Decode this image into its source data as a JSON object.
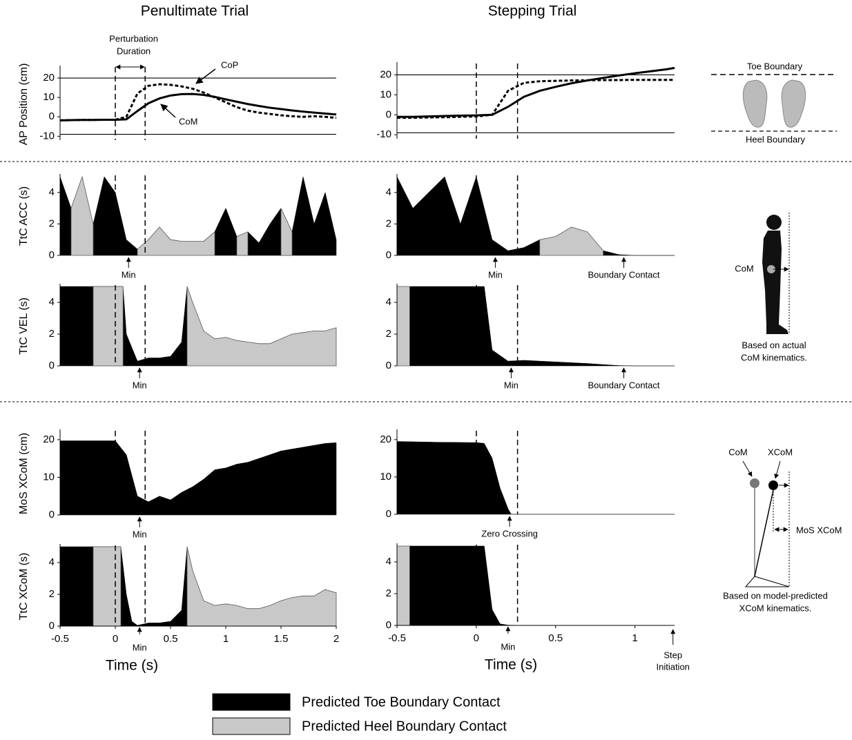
{
  "chart_data": [
    {
      "type": "line",
      "title": "Penultimate Trial",
      "ylabel": "AP Position (cm)",
      "perturbation_label": [
        "Perturbation",
        "Duration"
      ],
      "x": [
        -0.5,
        -0.4,
        -0.3,
        -0.2,
        -0.1,
        0,
        0.1,
        0.2,
        0.3,
        0.4,
        0.5,
        0.6,
        0.7,
        0.8,
        0.9,
        1,
        1.1,
        1.2,
        1.3,
        1.4,
        1.5,
        1.6,
        1.7,
        1.8,
        1.9,
        2
      ],
      "series": [
        {
          "name": "CoP",
          "color": "#000000",
          "dash": true,
          "values": [
            -1.8,
            -1.7,
            -1.6,
            -1.6,
            -1.5,
            -1.5,
            0,
            12,
            16,
            16.8,
            16.5,
            15.7,
            14.5,
            12.5,
            10,
            7.5,
            5,
            3.2,
            2.2,
            1.5,
            0.8,
            0.3,
            0,
            0.3,
            0,
            -0.5
          ]
        },
        {
          "name": "CoM",
          "color": "#000000",
          "dash": false,
          "values": [
            -1.8,
            -1.7,
            -1.6,
            -1.6,
            -1.5,
            -1.5,
            -1.3,
            3,
            7,
            9.5,
            11,
            11.7,
            11.8,
            11.3,
            10.3,
            9,
            7.8,
            6.6,
            5.6,
            4.7,
            4,
            3.3,
            2.7,
            2.2,
            1.7,
            1.2
          ]
        }
      ],
      "xlim": [
        -0.5,
        2
      ],
      "ylim": [
        -12,
        25
      ],
      "yticks": [
        -10,
        0,
        10,
        20
      ],
      "hlines": [
        20,
        -9
      ],
      "vlines": [
        0,
        0.27
      ]
    },
    {
      "type": "line",
      "title": "Stepping Trial",
      "x": [
        -0.5,
        -0.4,
        -0.3,
        -0.2,
        -0.1,
        0,
        0.1,
        0.2,
        0.3,
        0.4,
        0.5,
        0.6,
        0.7,
        0.8,
        0.9,
        1,
        1.1,
        1.2,
        1.25
      ],
      "series": [
        {
          "color": "#000000",
          "dash": true,
          "values": [
            -1.5,
            -1.5,
            -1.3,
            -1.2,
            -1,
            -0.8,
            0,
            12,
            16,
            16.8,
            17,
            17.2,
            17.3,
            17.4,
            17.4,
            17.5,
            17.5,
            17.5,
            17.5
          ]
        },
        {
          "color": "#000000",
          "dash": false,
          "values": [
            -1,
            -1,
            -0.8,
            -0.6,
            -0.4,
            -0.3,
            0,
            4,
            9,
            12,
            14,
            15.8,
            17.2,
            18.5,
            19.7,
            20.8,
            21.8,
            22.8,
            23.5
          ]
        }
      ],
      "xlim": [
        -0.5,
        1.25
      ],
      "ylim": [
        -12,
        25
      ],
      "yticks": [
        -10,
        0,
        10,
        20
      ],
      "hlines": [
        20,
        -9
      ],
      "vlines": [
        0,
        0.26
      ]
    },
    {
      "type": "area",
      "ylabel": "TtC ACC (s)",
      "x": [
        -0.5,
        -0.4,
        -0.3,
        -0.2,
        -0.1,
        0,
        0.1,
        0.2,
        0.3,
        0.4,
        0.5,
        0.6,
        0.7,
        0.8,
        0.9,
        1,
        1.1,
        1.2,
        1.3,
        1.4,
        1.5,
        1.6,
        1.7,
        1.8,
        1.9,
        2
      ],
      "series": [
        {
          "name": "Predicted Toe Boundary Contact",
          "color": "#000000",
          "values": [
            5,
            3,
            null,
            2,
            5,
            4,
            1,
            0.4,
            null,
            null,
            null,
            null,
            null,
            null,
            1.5,
            3,
            1.2,
            1.5,
            0.8,
            2,
            3,
            1.5,
            5,
            2,
            4,
            1
          ]
        },
        {
          "name": "Predicted Heel Boundary Contact",
          "color": "#c8c8c8",
          "values": [
            null,
            3,
            5,
            2,
            null,
            null,
            null,
            0.4,
            1,
            1.8,
            1,
            0.9,
            0.9,
            0.9,
            1.5,
            null,
            1.2,
            1.5,
            null,
            null,
            3,
            1.5,
            null,
            null,
            null,
            null
          ]
        }
      ],
      "xlim": [
        -0.5,
        2
      ],
      "ylim": [
        0,
        5
      ],
      "yticks": [
        0,
        2,
        4
      ],
      "vlines": [
        0,
        0.27
      ],
      "annotations": [
        {
          "text": "Min",
          "x": 0.12
        }
      ]
    },
    {
      "type": "area",
      "x": [
        -0.5,
        -0.4,
        -0.3,
        -0.2,
        -0.1,
        0,
        0.1,
        0.2,
        0.3,
        0.4,
        0.5,
        0.6,
        0.7,
        0.8,
        0.9,
        1,
        1.1,
        1.2,
        1.25
      ],
      "series": [
        {
          "name": "Predicted Toe Boundary Contact",
          "color": "#000000",
          "values": [
            5,
            3,
            4,
            5,
            2,
            5,
            1,
            0.3,
            0.5,
            1,
            null,
            null,
            null,
            0.3,
            0.05,
            0,
            0,
            0,
            0
          ]
        },
        {
          "name": "Predicted Heel Boundary Contact",
          "color": "#c8c8c8",
          "values": [
            null,
            null,
            null,
            null,
            null,
            null,
            null,
            null,
            null,
            1,
            1.2,
            1.8,
            1.5,
            0.3,
            null,
            null,
            null,
            null,
            null
          ]
        }
      ],
      "xlim": [
        -0.5,
        1.25
      ],
      "ylim": [
        0,
        5
      ],
      "yticks": [
        0,
        2,
        4
      ],
      "vlines": [
        0,
        0.26
      ],
      "annotations": [
        {
          "text": "Min",
          "x": 0.12
        },
        {
          "text": "Boundary Contact",
          "x": 0.93
        }
      ]
    },
    {
      "type": "area",
      "ylabel": "TtC VEL (s)",
      "x": [
        -0.5,
        -0.2,
        0.07,
        0.1,
        0.2,
        0.3,
        0.4,
        0.5,
        0.6,
        0.65,
        0.7,
        0.8,
        0.9,
        1,
        1.1,
        1.2,
        1.3,
        1.4,
        1.5,
        1.6,
        1.7,
        1.8,
        1.9,
        2
      ],
      "series": [
        {
          "name": "Predicted Toe Boundary Contact",
          "color": "#000000",
          "values": [
            5,
            5,
            5,
            2,
            0.3,
            0.5,
            0.5,
            0.6,
            1.5,
            5,
            null,
            null,
            null,
            null,
            null,
            null,
            null,
            null,
            null,
            null,
            null,
            null,
            null,
            null
          ]
        },
        {
          "name": "Predicted Heel Boundary Contact",
          "color": "#c8c8c8",
          "values": [
            null,
            5,
            5,
            null,
            null,
            null,
            null,
            null,
            null,
            5,
            4,
            2.2,
            1.7,
            1.8,
            1.6,
            1.5,
            1.4,
            1.4,
            1.7,
            2,
            2.1,
            2.2,
            2.2,
            2.4
          ]
        }
      ],
      "xlim": [
        -0.5,
        2
      ],
      "ylim": [
        0,
        5
      ],
      "yticks": [
        0,
        2,
        4
      ],
      "vlines": [
        0,
        0.27
      ],
      "annotations": [
        {
          "text": "Min",
          "x": 0.22
        }
      ]
    },
    {
      "type": "area",
      "x": [
        -0.5,
        -0.42,
        0.05,
        0.1,
        0.2,
        0.3,
        0.4,
        0.5,
        0.6,
        0.7,
        0.8,
        0.9,
        1,
        1.25
      ],
      "series": [
        {
          "name": "Predicted Toe Boundary Contact",
          "color": "#000000",
          "values": [
            null,
            5,
            5,
            1,
            0.3,
            0.35,
            0.3,
            0.25,
            0.2,
            0.15,
            0.08,
            0.02,
            0,
            0
          ]
        },
        {
          "name": "Predicted Heel Boundary Contact",
          "color": "#c8c8c8",
          "values": [
            5,
            5,
            null,
            null,
            null,
            null,
            null,
            null,
            null,
            null,
            null,
            null,
            null,
            null
          ]
        }
      ],
      "xlim": [
        -0.5,
        1.25
      ],
      "ylim": [
        0,
        5
      ],
      "yticks": [
        0,
        2,
        4
      ],
      "vlines": [
        0,
        0.26
      ],
      "annotations": [
        {
          "text": "Min",
          "x": 0.22
        },
        {
          "text": "Boundary Contact",
          "x": 0.93
        }
      ]
    },
    {
      "type": "area",
      "ylabel": "MoS XCoM (cm)",
      "x": [
        -0.5,
        -0.4,
        -0.3,
        -0.2,
        -0.1,
        0,
        0.1,
        0.2,
        0.3,
        0.4,
        0.5,
        0.6,
        0.7,
        0.8,
        0.9,
        1,
        1.1,
        1.2,
        1.3,
        1.4,
        1.5,
        1.6,
        1.7,
        1.8,
        1.9,
        2
      ],
      "series": [
        {
          "name": "Predicted Toe Boundary Contact",
          "color": "#000000",
          "values": [
            19.7,
            19.7,
            19.7,
            19.7,
            19.7,
            19.7,
            16,
            5,
            3.5,
            5,
            4,
            6,
            7.5,
            9.5,
            12,
            12.5,
            13.5,
            14,
            15,
            16,
            17,
            17.5,
            18,
            18.5,
            19,
            19.2
          ]
        }
      ],
      "xlim": [
        -0.5,
        2
      ],
      "ylim": [
        0,
        22
      ],
      "yticks": [
        0,
        10,
        20
      ],
      "vlines": [
        0,
        0.27
      ],
      "annotations": [
        {
          "text": "Min",
          "x": 0.22
        }
      ]
    },
    {
      "type": "area",
      "x": [
        -0.5,
        -0.25,
        0,
        0.05,
        0.1,
        0.15,
        0.2,
        0.22,
        1.25
      ],
      "series": [
        {
          "name": "Predicted Toe Boundary Contact",
          "color": "#000000",
          "values": [
            19.5,
            19.3,
            19.2,
            19,
            15,
            7,
            1.5,
            0,
            0
          ]
        }
      ],
      "xlim": [
        -0.5,
        1.25
      ],
      "ylim": [
        0,
        22
      ],
      "yticks": [
        0,
        10,
        20
      ],
      "vlines": [
        0,
        0.26
      ],
      "annotations": [
        {
          "text": "Zero Crossing",
          "x": 0.21
        }
      ]
    },
    {
      "type": "area",
      "ylabel": "TtC XCoM (s)",
      "xlabel": "Time (s)",
      "x": [
        -0.5,
        -0.2,
        0.05,
        0.1,
        0.15,
        0.2,
        0.3,
        0.4,
        0.5,
        0.6,
        0.65,
        0.7,
        0.8,
        0.9,
        1,
        1.1,
        1.2,
        1.3,
        1.4,
        1.5,
        1.6,
        1.7,
        1.8,
        1.9,
        2
      ],
      "series": [
        {
          "name": "Predicted Toe Boundary Contact",
          "color": "#000000",
          "values": [
            5,
            5,
            5,
            2,
            0.3,
            0.05,
            0.2,
            0.2,
            0.3,
            1,
            5,
            null,
            null,
            null,
            null,
            null,
            null,
            null,
            null,
            null,
            null,
            null,
            null,
            null,
            null
          ]
        },
        {
          "name": "Predicted Heel Boundary Contact",
          "color": "#c8c8c8",
          "values": [
            null,
            5,
            5,
            null,
            null,
            null,
            null,
            null,
            null,
            null,
            5,
            3.5,
            1.6,
            1.3,
            1.4,
            1.3,
            1.1,
            1.1,
            1.3,
            1.6,
            1.8,
            1.9,
            1.9,
            2.3,
            2.1
          ]
        }
      ],
      "xlim": [
        -0.5,
        2
      ],
      "ylim": [
        0,
        5
      ],
      "yticks": [
        0,
        2,
        4
      ],
      "xticks": [
        -0.5,
        0,
        0.5,
        1,
        1.5,
        2
      ],
      "vlines": [
        0,
        0.27
      ],
      "annotations": [
        {
          "text": "Min",
          "x": 0.22
        }
      ]
    },
    {
      "type": "area",
      "xlabel": "Time (s)",
      "x": [
        -0.5,
        -0.42,
        0.05,
        0.1,
        0.15,
        0.2,
        0.3,
        1.25
      ],
      "series": [
        {
          "name": "Predicted Toe Boundary Contact",
          "color": "#000000",
          "values": [
            null,
            5,
            5,
            1,
            0.1,
            0.02,
            0,
            0
          ]
        },
        {
          "name": "Predicted Heel Boundary Contact",
          "color": "#c8c8c8",
          "values": [
            5,
            5,
            null,
            null,
            null,
            null,
            null,
            null
          ]
        }
      ],
      "xlim": [
        -0.5,
        1.25
      ],
      "ylim": [
        0,
        5
      ],
      "yticks": [
        0,
        2,
        4
      ],
      "xticks": [
        -0.5,
        0,
        0.5,
        1
      ],
      "vlines": [
        0,
        0.26
      ],
      "annotations": [
        {
          "text": "Min",
          "x": 0.2
        },
        {
          "text": [
            "Step",
            "Initiation"
          ],
          "x": 1.24
        }
      ]
    }
  ],
  "illustrations": {
    "toe_boundary": "Toe Boundary",
    "heel_boundary": "Heel Boundary",
    "com_label": "CoM",
    "caption_actual": [
      "Based on actual",
      "CoM kinematics."
    ],
    "com_label_2": "CoM",
    "xcom_label": "XCoM",
    "mos_label": "MoS XCoM",
    "caption_model": [
      "Based on model-predicted",
      "XCoM kinematics."
    ]
  }
}
